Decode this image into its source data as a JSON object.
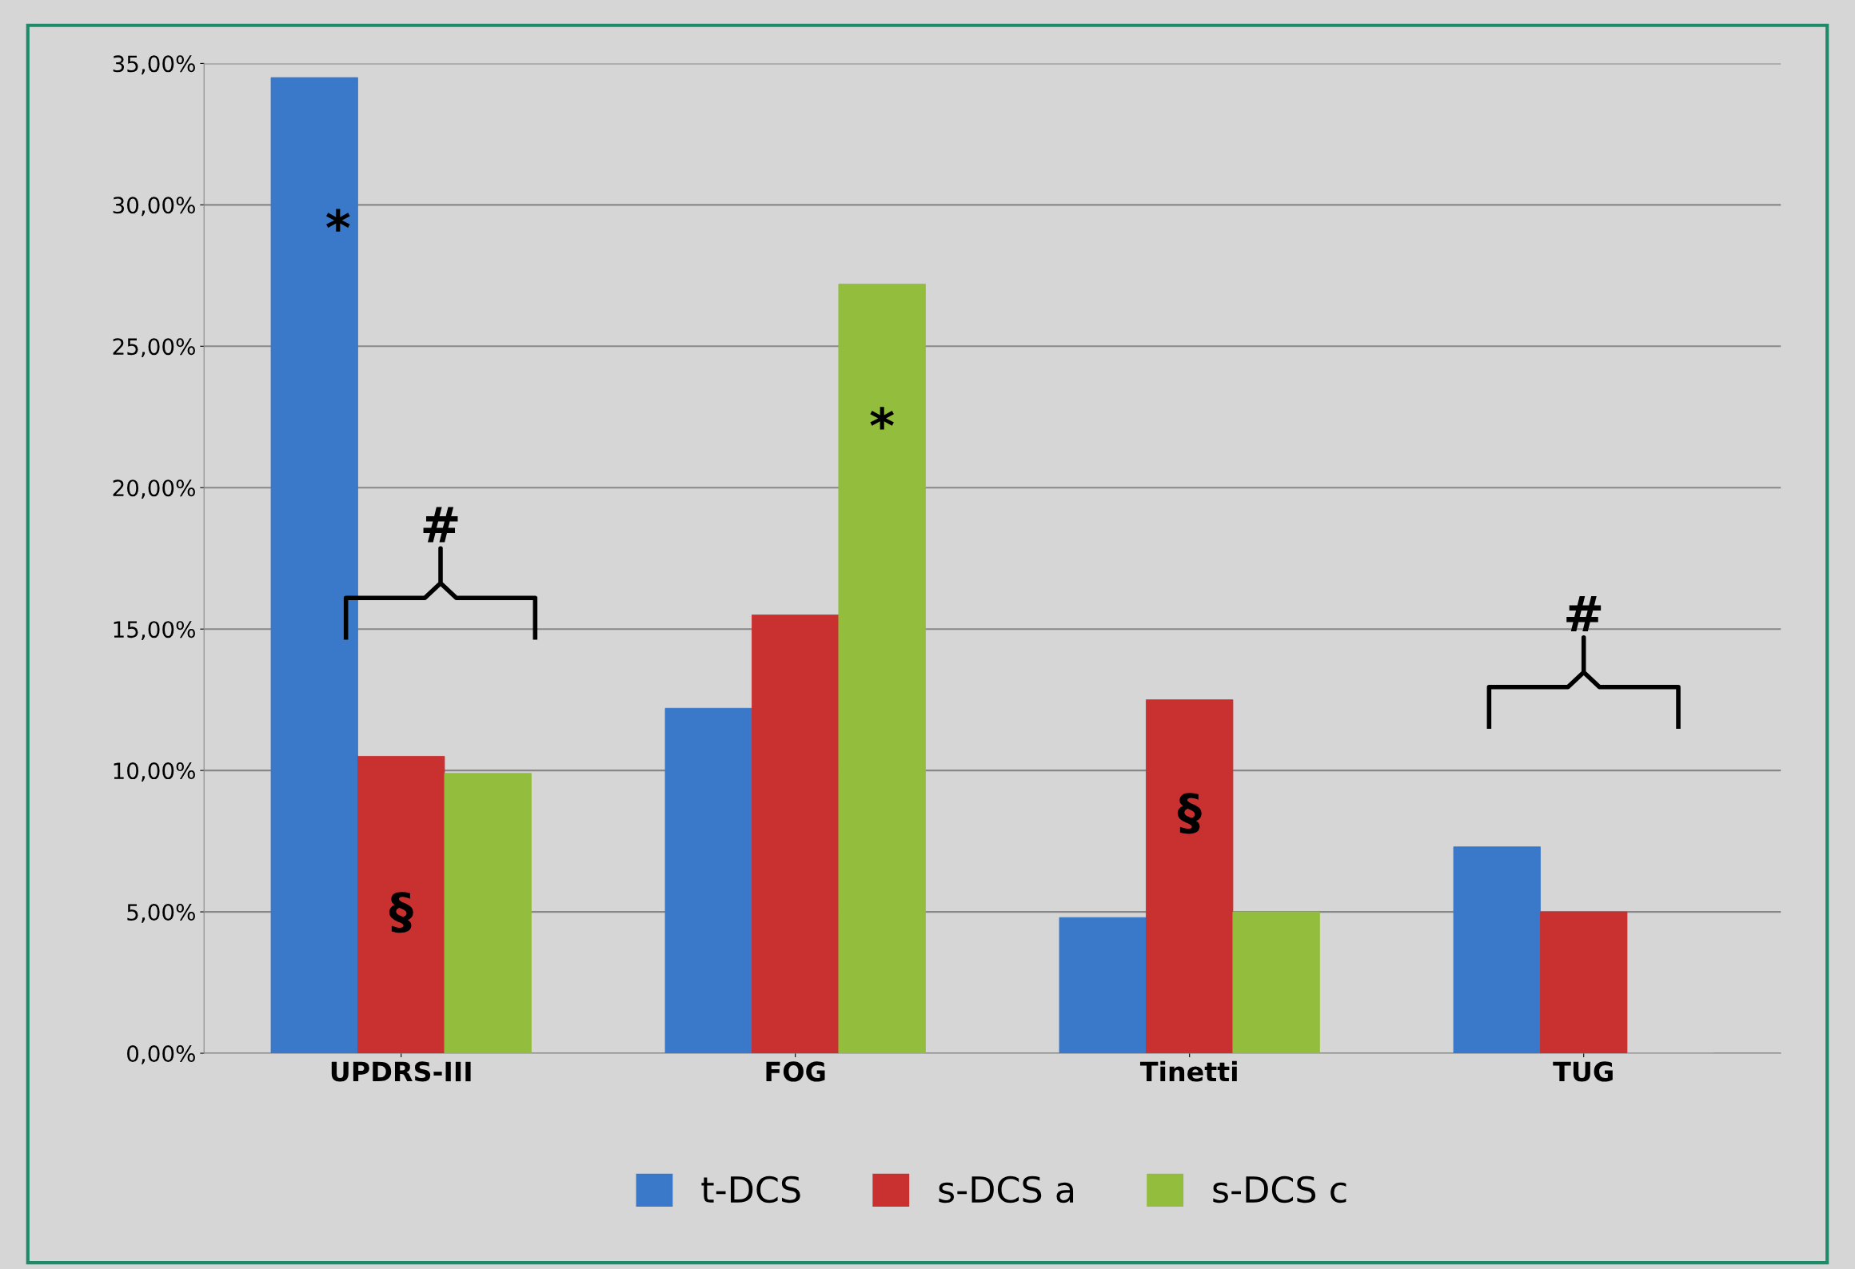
{
  "chart_data": {
    "type": "bar",
    "categories": [
      "UPDRS-III",
      "FOG",
      "Tinetti",
      "TUG"
    ],
    "series": [
      {
        "name": "t-DCS",
        "color": "#3a78c9",
        "values": [
          34.5,
          12.2,
          4.8,
          7.3
        ]
      },
      {
        "name": "s-DCS a",
        "color": "#c8312f",
        "values": [
          10.5,
          15.5,
          12.5,
          5.0
        ]
      },
      {
        "name": "s-DCS c",
        "color": "#93bd3c",
        "values": [
          9.9,
          27.2,
          5.0,
          0
        ]
      }
    ],
    "ylim": [
      0,
      35
    ],
    "yticks": [
      {
        "value": 0,
        "label": "0,00%"
      },
      {
        "value": 5,
        "label": "5,00%"
      },
      {
        "value": 10,
        "label": "10,00%"
      },
      {
        "value": 15,
        "label": "15,00%"
      },
      {
        "value": 20,
        "label": "20,00%"
      },
      {
        "value": 25,
        "label": "25,00%"
      },
      {
        "value": 30,
        "label": "30,00%"
      },
      {
        "value": 35,
        "label": "35,00%"
      }
    ],
    "grid": "y",
    "legend": "bottom",
    "annotations": [
      "*",
      "§",
      "#",
      "*",
      "§",
      "#"
    ]
  }
}
